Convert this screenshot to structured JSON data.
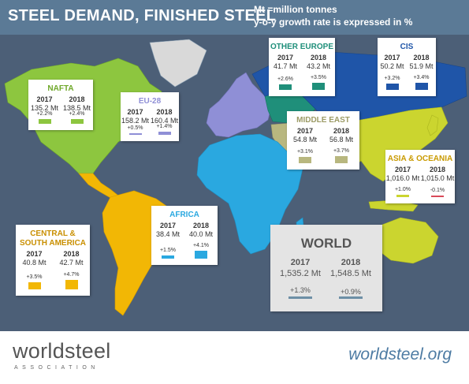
{
  "header": {
    "title": "STEEL DEMAND, FINISHED STEEL",
    "unit_line1": "Mt =million tonnes",
    "unit_line2": "y-o-y growth rate is expressed in %"
  },
  "footer": {
    "logo_main": "worldsteel",
    "logo_sub": "ASSOCIATION",
    "website": "worldsteel.org"
  },
  "colors": {
    "nafta": "#8dc63f",
    "eu28": "#8f8fd6",
    "other_europe": "#1f8f7a",
    "cis": "#1f55a8",
    "middle_east": "#b8b77f",
    "asia_oceania": "#cbd52f",
    "africa": "#2aa8e0",
    "central_south_america": "#f2b705",
    "world": "#6d8fa6",
    "negative": "#d94a5a",
    "map_background": "#4c5f77",
    "header": "#5b7a96"
  },
  "chart_data": {
    "type": "bar",
    "title": "STEEL DEMAND, FINISHED STEEL",
    "unit": "Mt",
    "years": [
      "2017",
      "2018"
    ],
    "regions": [
      {
        "key": "nafta",
        "name": "NAFTA",
        "values": [
          "135.2 Mt",
          "138.5 Mt"
        ],
        "growth": [
          "+2.2%",
          "+2.4%"
        ],
        "growth_pct": [
          2.2,
          2.4
        ]
      },
      {
        "key": "eu28",
        "name": "EU-28",
        "values": [
          "158.2 Mt",
          "160.4 Mt"
        ],
        "growth": [
          "+0.5%",
          "+1.4%"
        ],
        "growth_pct": [
          0.5,
          1.4
        ]
      },
      {
        "key": "other_europe",
        "name": "OTHER EUROPE",
        "values": [
          "41.7 Mt",
          "43.2 Mt"
        ],
        "growth": [
          "+2.6%",
          "+3.5%"
        ],
        "growth_pct": [
          2.6,
          3.5
        ]
      },
      {
        "key": "cis",
        "name": "CIS",
        "values": [
          "50.2 Mt",
          "51.9 Mt"
        ],
        "growth": [
          "+3.2%",
          "+3.4%"
        ],
        "growth_pct": [
          3.2,
          3.4
        ]
      },
      {
        "key": "middle_east",
        "name": "MIDDLE EAST",
        "values": [
          "54.8 Mt",
          "56.8 Mt"
        ],
        "growth": [
          "+3.1%",
          "+3.7%"
        ],
        "growth_pct": [
          3.1,
          3.7
        ]
      },
      {
        "key": "asia_oceania",
        "name": "ASIA & OCEANIA",
        "values": [
          "1,016.0 Mt",
          "1,015.0 Mt"
        ],
        "growth": [
          "+1.0%",
          "-0.1%"
        ],
        "growth_pct": [
          1.0,
          -0.1
        ]
      },
      {
        "key": "africa",
        "name": "AFRICA",
        "values": [
          "38.4 Mt",
          "40.0 Mt"
        ],
        "growth": [
          "+1.5%",
          "+4.1%"
        ],
        "growth_pct": [
          1.5,
          4.1
        ]
      },
      {
        "key": "central_south_america",
        "name": "CENTRAL & SOUTH AMERICA",
        "values": [
          "40.8 Mt",
          "42.7 Mt"
        ],
        "growth": [
          "+3.5%",
          "+4.7%"
        ],
        "growth_pct": [
          3.5,
          4.7
        ]
      },
      {
        "key": "world",
        "name": "WORLD",
        "values": [
          "1,535.2 Mt",
          "1,548.5 Mt"
        ],
        "growth": [
          "+1.3%",
          "+0.9%"
        ],
        "growth_pct": [
          1.3,
          0.9
        ]
      }
    ]
  }
}
